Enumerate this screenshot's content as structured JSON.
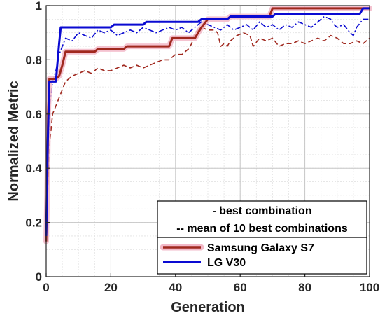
{
  "chart_data": {
    "type": "line",
    "title": "",
    "xlabel": "Generation",
    "ylabel": "Normalized Metric",
    "xlim": [
      0,
      100
    ],
    "ylim": [
      0,
      1
    ],
    "xticks": [
      0,
      20,
      40,
      60,
      80,
      100
    ],
    "yticks": [
      0,
      0.2,
      0.4,
      0.6,
      0.8,
      1
    ],
    "xtick_labels": [
      "0",
      "20",
      "40",
      "60",
      "80",
      "100"
    ],
    "ytick_labels": [
      "0",
      "0.2",
      "0.4",
      "0.6",
      "0.8",
      "1"
    ],
    "grid": true,
    "minor_grid": true,
    "legend_position": "lower-right",
    "legend_notes": [
      "- best combination",
      "-- mean of 10 best combinations"
    ],
    "series": [
      {
        "name": "Samsung Galaxy S7",
        "color": "#a0281e",
        "halo": "#f2b8c8",
        "style": "solid",
        "points": [
          [
            0,
            0.13
          ],
          [
            0.3,
            0.3
          ],
          [
            0.6,
            0.6
          ],
          [
            1,
            0.73
          ],
          [
            3,
            0.73
          ],
          [
            4,
            0.74
          ],
          [
            5,
            0.78
          ],
          [
            6,
            0.83
          ],
          [
            15,
            0.83
          ],
          [
            16,
            0.84
          ],
          [
            24,
            0.84
          ],
          [
            25,
            0.85
          ],
          [
            38,
            0.85
          ],
          [
            39,
            0.88
          ],
          [
            46,
            0.88
          ],
          [
            47,
            0.9
          ],
          [
            48,
            0.92
          ],
          [
            50,
            0.95
          ],
          [
            56,
            0.95
          ],
          [
            57,
            0.96
          ],
          [
            69,
            0.96
          ],
          [
            70,
            0.99
          ],
          [
            100,
            0.99
          ]
        ]
      },
      {
        "name": "Samsung Galaxy S7 (mean of 10 best)",
        "color": "#a0281e",
        "style": "dashed",
        "points": [
          [
            0,
            0.14
          ],
          [
            1,
            0.48
          ],
          [
            2,
            0.6
          ],
          [
            3,
            0.63
          ],
          [
            4,
            0.66
          ],
          [
            5,
            0.69
          ],
          [
            6,
            0.72
          ],
          [
            8,
            0.74
          ],
          [
            10,
            0.75
          ],
          [
            12,
            0.76
          ],
          [
            14,
            0.75
          ],
          [
            16,
            0.77
          ],
          [
            18,
            0.76
          ],
          [
            20,
            0.76
          ],
          [
            22,
            0.77
          ],
          [
            24,
            0.78
          ],
          [
            26,
            0.77
          ],
          [
            28,
            0.78
          ],
          [
            30,
            0.77
          ],
          [
            32,
            0.78
          ],
          [
            34,
            0.79
          ],
          [
            36,
            0.8
          ],
          [
            38,
            0.8
          ],
          [
            40,
            0.82
          ],
          [
            42,
            0.82
          ],
          [
            44,
            0.84
          ],
          [
            45,
            0.86
          ],
          [
            46,
            0.9
          ],
          [
            48,
            0.92
          ],
          [
            50,
            0.91
          ],
          [
            52,
            0.91
          ],
          [
            53,
            0.9
          ],
          [
            54,
            0.85
          ],
          [
            55,
            0.86
          ],
          [
            56,
            0.85
          ],
          [
            57,
            0.87
          ],
          [
            59,
            0.89
          ],
          [
            61,
            0.9
          ],
          [
            63,
            0.89
          ],
          [
            64,
            0.85
          ],
          [
            66,
            0.88
          ],
          [
            68,
            0.87
          ],
          [
            70,
            0.88
          ],
          [
            72,
            0.85
          ],
          [
            74,
            0.86
          ],
          [
            76,
            0.86
          ],
          [
            78,
            0.87
          ],
          [
            80,
            0.86
          ],
          [
            82,
            0.87
          ],
          [
            84,
            0.88
          ],
          [
            86,
            0.87
          ],
          [
            88,
            0.89
          ],
          [
            90,
            0.88
          ],
          [
            92,
            0.86
          ],
          [
            94,
            0.86
          ],
          [
            96,
            0.87
          ],
          [
            98,
            0.86
          ],
          [
            100,
            0.88
          ]
        ]
      },
      {
        "name": "LG V30",
        "color": "#0a0ad2",
        "style": "solid",
        "points": [
          [
            0,
            0.15
          ],
          [
            0.5,
            0.5
          ],
          [
            1,
            0.72
          ],
          [
            3,
            0.72
          ],
          [
            4,
            0.86
          ],
          [
            4.5,
            0.92
          ],
          [
            20,
            0.92
          ],
          [
            21,
            0.93
          ],
          [
            30,
            0.93
          ],
          [
            31,
            0.94
          ],
          [
            47,
            0.94
          ],
          [
            48,
            0.95
          ],
          [
            56,
            0.95
          ],
          [
            57,
            0.96
          ],
          [
            70,
            0.96
          ],
          [
            71,
            0.97
          ],
          [
            97,
            0.97
          ],
          [
            98,
            0.99
          ],
          [
            100,
            0.99
          ]
        ]
      },
      {
        "name": "LG V30 (mean of 10 best)",
        "color": "#0a0ad2",
        "style": "dashdot",
        "points": [
          [
            0,
            0.14
          ],
          [
            1,
            0.62
          ],
          [
            2,
            0.72
          ],
          [
            3,
            0.76
          ],
          [
            4,
            0.82
          ],
          [
            5,
            0.85
          ],
          [
            6,
            0.88
          ],
          [
            8,
            0.87
          ],
          [
            10,
            0.9
          ],
          [
            12,
            0.89
          ],
          [
            14,
            0.88
          ],
          [
            16,
            0.91
          ],
          [
            18,
            0.9
          ],
          [
            20,
            0.91
          ],
          [
            22,
            0.89
          ],
          [
            24,
            0.9
          ],
          [
            26,
            0.91
          ],
          [
            28,
            0.9
          ],
          [
            30,
            0.92
          ],
          [
            32,
            0.91
          ],
          [
            34,
            0.9
          ],
          [
            36,
            0.91
          ],
          [
            38,
            0.92
          ],
          [
            40,
            0.91
          ],
          [
            42,
            0.92
          ],
          [
            44,
            0.9
          ],
          [
            46,
            0.92
          ],
          [
            48,
            0.94
          ],
          [
            50,
            0.93
          ],
          [
            52,
            0.92
          ],
          [
            54,
            0.91
          ],
          [
            56,
            0.93
          ],
          [
            58,
            0.91
          ],
          [
            60,
            0.92
          ],
          [
            62,
            0.93
          ],
          [
            64,
            0.91
          ],
          [
            66,
            0.94
          ],
          [
            68,
            0.92
          ],
          [
            70,
            0.93
          ],
          [
            72,
            0.91
          ],
          [
            74,
            0.93
          ],
          [
            76,
            0.92
          ],
          [
            78,
            0.94
          ],
          [
            80,
            0.93
          ],
          [
            82,
            0.92
          ],
          [
            84,
            0.94
          ],
          [
            86,
            0.96
          ],
          [
            88,
            0.95
          ],
          [
            89,
            0.93
          ],
          [
            90,
            0.92
          ],
          [
            92,
            0.93
          ],
          [
            94,
            0.9
          ],
          [
            95,
            0.89
          ],
          [
            96,
            0.92
          ],
          [
            98,
            0.95
          ],
          [
            100,
            0.95
          ]
        ]
      }
    ]
  }
}
